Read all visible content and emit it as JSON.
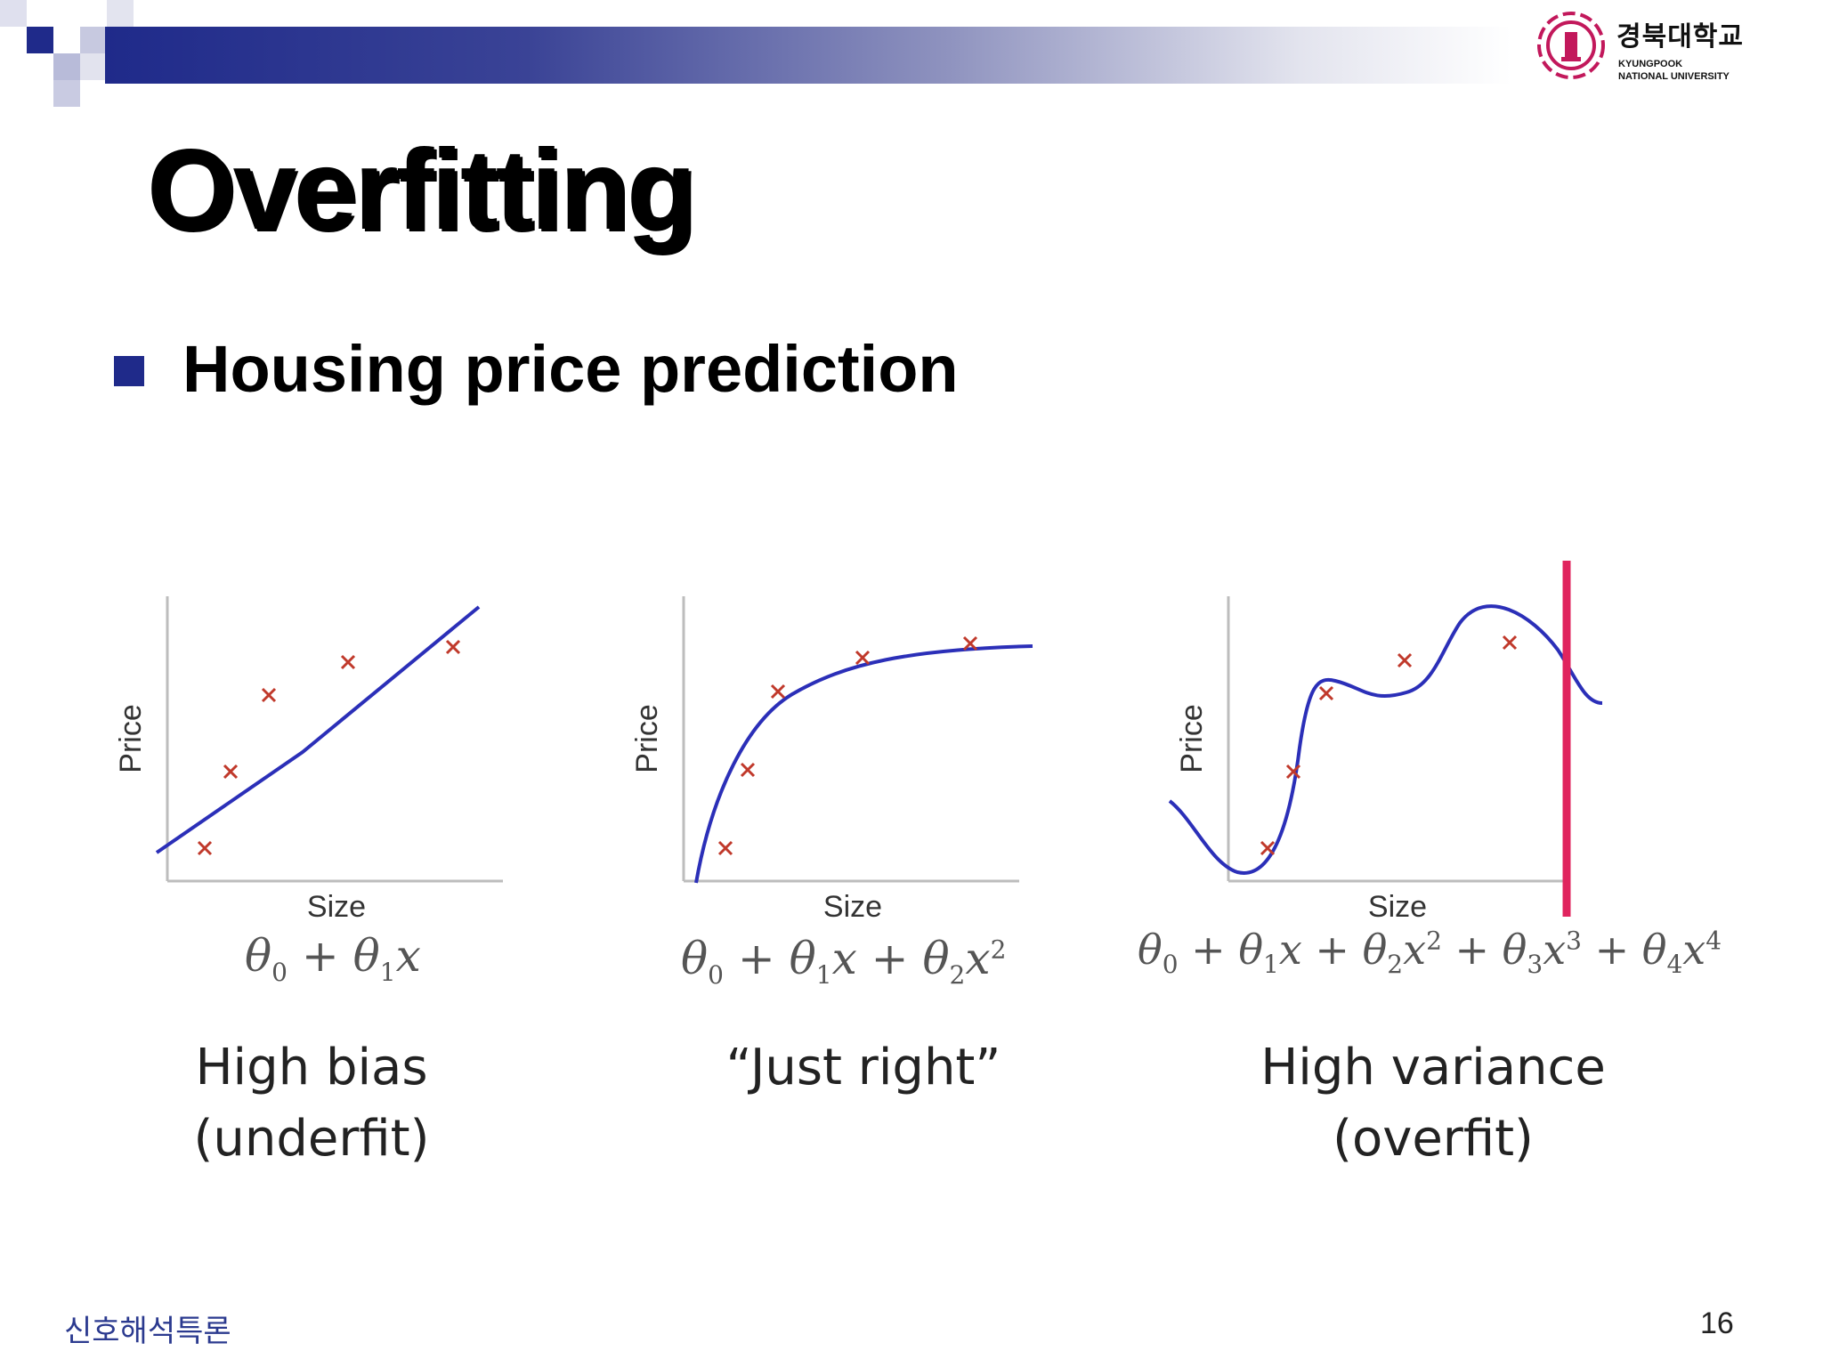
{
  "header": {
    "logo": {
      "name_ko": "경북대학교",
      "name_en_line1": "KYUNGPOOK",
      "name_en_line2": "NATIONAL UNIVERSITY"
    }
  },
  "slide": {
    "title": "Overfitting",
    "bullet": "Housing price prediction"
  },
  "panels": [
    {
      "ylabel": "Price",
      "xlabel": "Size",
      "equation": "θ0 + θ1x",
      "caption_line1": "High bias",
      "caption_line2": "(underfit)"
    },
    {
      "ylabel": "Price",
      "xlabel": "Size",
      "equation": "θ0 + θ1x + θ2x2",
      "caption_line1": "“Just right”",
      "caption_line2": ""
    },
    {
      "ylabel": "Price",
      "xlabel": "Size",
      "equation": "θ0 + θ1x + θ2x2 + θ3x3 + θ4x4",
      "caption_line1": "High variance",
      "caption_line2": "(overfit)"
    }
  ],
  "footer": {
    "course": "신호해석특론",
    "page_number": "16"
  },
  "colors": {
    "accent_navy": "#1f2a8a",
    "curve_blue": "#2b2fb8",
    "marker_red": "#c0392b",
    "annotation_pink": "#e0245e"
  }
}
